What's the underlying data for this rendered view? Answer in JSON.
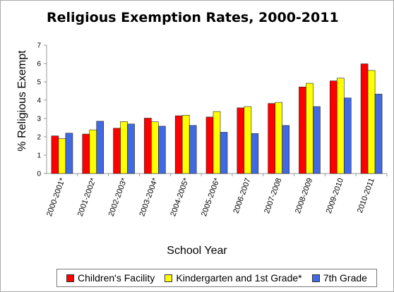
{
  "chart_data": {
    "type": "bar",
    "title": "Religious Exemption Rates, 2000-2011",
    "xlabel": "School Year",
    "ylabel": "% Religious Exempt",
    "ylim": [
      0,
      7
    ],
    "yticks": [
      "0",
      "1",
      "2",
      "3",
      "4",
      "5",
      "6",
      "7"
    ],
    "categories": [
      "2000-2001*",
      "2001-2002*",
      "2002-2003*",
      "2003-2004*",
      "2004-2005*",
      "2005-2006*",
      "2006-2007",
      "2007-2008",
      "2008-2009",
      "2009-2010",
      "2010-2011"
    ],
    "series": [
      {
        "name": "Children's Facility",
        "color": "#ff0000",
        "values": [
          2.05,
          2.15,
          2.47,
          3.02,
          3.15,
          3.08,
          3.58,
          3.82,
          4.72,
          5.05,
          5.98
        ]
      },
      {
        "name": "Kindergarten and 1st Grade*",
        "color": "#ffff00",
        "values": [
          1.9,
          2.38,
          2.83,
          2.82,
          3.18,
          3.38,
          3.65,
          3.88,
          4.92,
          5.2,
          5.62
        ]
      },
      {
        "name": "7th Grade",
        "color": "#4169e1",
        "values": [
          2.2,
          2.85,
          2.7,
          2.58,
          2.62,
          2.25,
          2.18,
          2.62,
          3.65,
          4.12,
          4.33
        ]
      }
    ],
    "grid": false,
    "legend_position": "bottom"
  }
}
